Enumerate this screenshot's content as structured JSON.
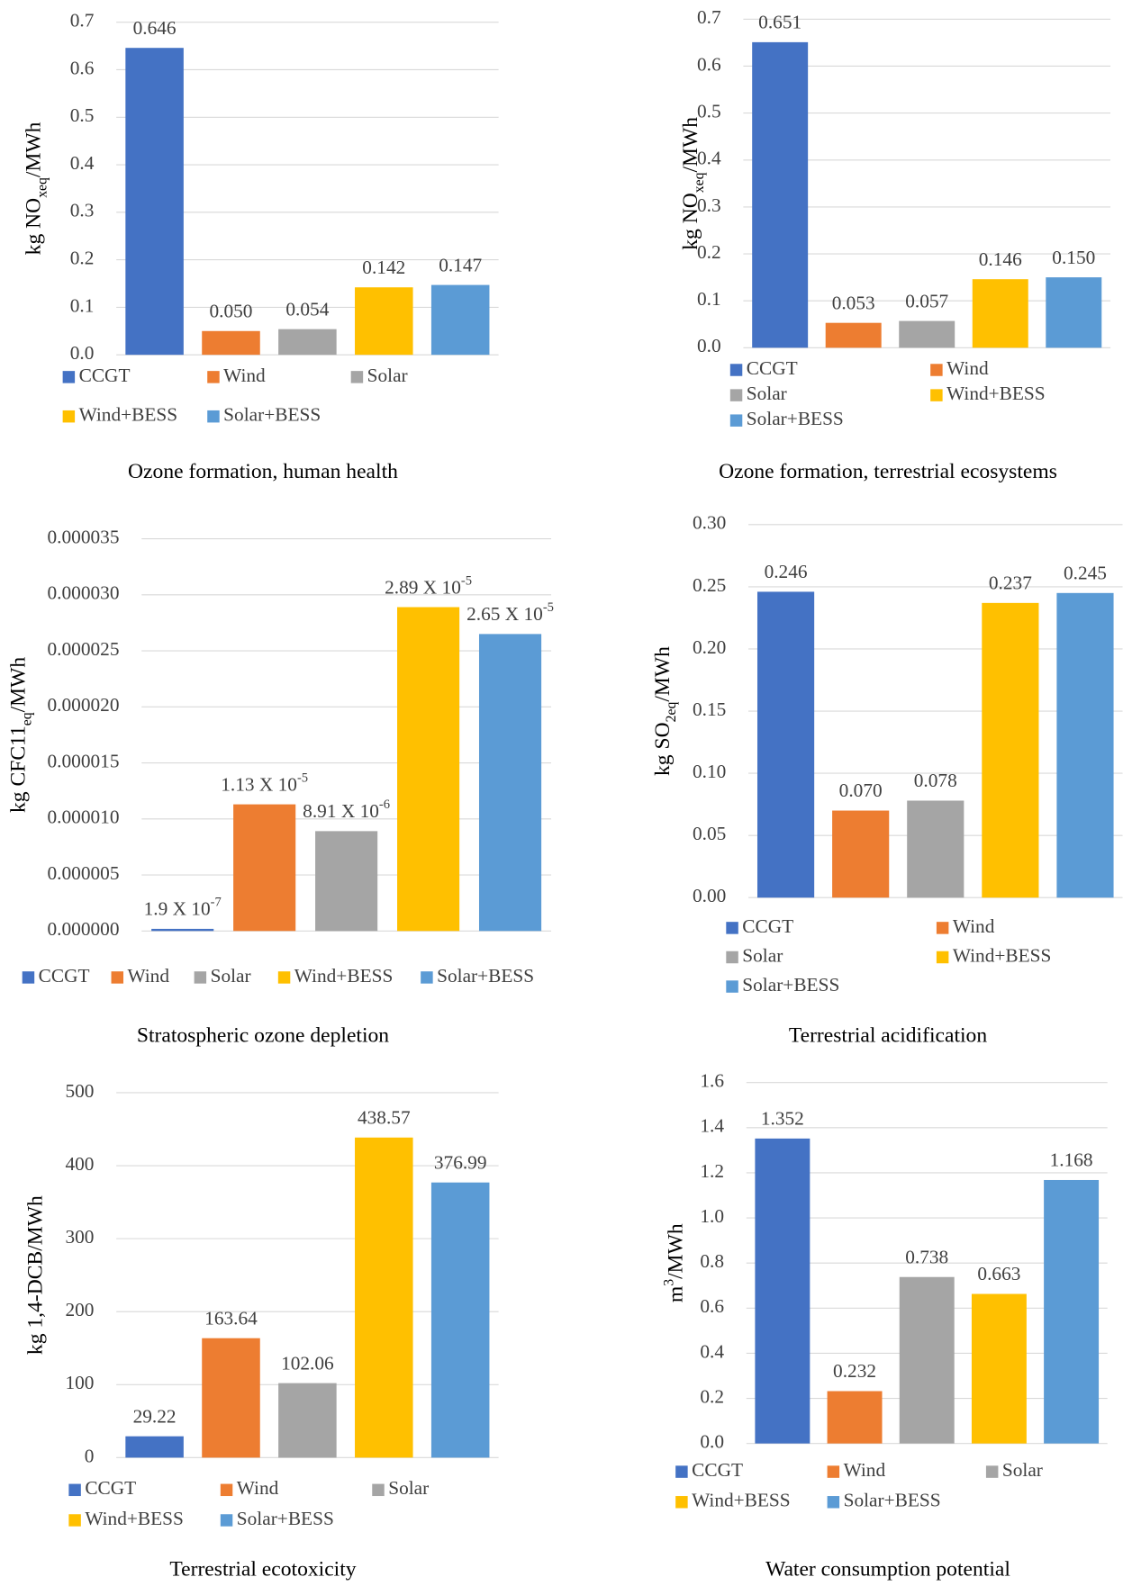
{
  "chart_data": [
    {
      "type": "bar",
      "caption": "Ozone formation, human health",
      "ylabel": [
        {
          "text": "kg NO"
        },
        {
          "text": "xeq",
          "shift": "sub"
        },
        {
          "text": "/MWh"
        }
      ],
      "ylim": [
        0,
        0.7
      ],
      "yticks": [
        {
          "value": 0,
          "label": "0.0"
        },
        0.1,
        0.2,
        0.3,
        0.4,
        0.5,
        0.6,
        0.7
      ],
      "grid": true,
      "legend": "bottom",
      "legend_columns": 3,
      "series": [
        {
          "name": "CCGT",
          "color": "#4472c4",
          "values": [
            0.646
          ],
          "value_labels": [
            "0.646"
          ]
        },
        {
          "name": "Wind",
          "color": "#ed7d31",
          "values": [
            0.05
          ],
          "value_labels": [
            "0.050"
          ]
        },
        {
          "name": "Solar",
          "color": "#a5a5a5",
          "values": [
            0.054
          ],
          "value_labels": [
            "0.054"
          ]
        },
        {
          "name": "Wind+BESS",
          "color": "#ffc000",
          "values": [
            0.142
          ],
          "value_labels": [
            "0.142"
          ]
        },
        {
          "name": "Solar+BESS",
          "color": "#5b9bd5",
          "values": [
            0.147
          ],
          "value_labels": [
            "0.147"
          ]
        }
      ]
    },
    {
      "type": "bar",
      "caption": "Ozone formation, terrestrial ecosystems",
      "ylabel": [
        {
          "text": "kg NO"
        },
        {
          "text": "xeq",
          "shift": "sub"
        },
        {
          "text": "/MWh"
        }
      ],
      "ylim": [
        0,
        0.7
      ],
      "yticks": [
        {
          "value": 0,
          "label": "0.0"
        },
        0.1,
        0.2,
        0.3,
        0.4,
        0.5,
        0.6,
        0.7
      ],
      "grid": true,
      "legend": "bottom",
      "legend_columns": 2,
      "series": [
        {
          "name": "CCGT",
          "color": "#4472c4",
          "values": [
            0.651
          ],
          "value_labels": [
            "0.651"
          ]
        },
        {
          "name": "Wind",
          "color": "#ed7d31",
          "values": [
            0.053
          ],
          "value_labels": [
            "0.053"
          ]
        },
        {
          "name": "Solar",
          "color": "#a5a5a5",
          "values": [
            0.057
          ],
          "value_labels": [
            "0.057"
          ]
        },
        {
          "name": "Wind+BESS",
          "color": "#ffc000",
          "values": [
            0.146
          ],
          "value_labels": [
            "0.146"
          ]
        },
        {
          "name": "Solar+BESS",
          "color": "#5b9bd5",
          "values": [
            0.15
          ],
          "value_labels": [
            "0.150"
          ]
        }
      ]
    },
    {
      "type": "bar",
      "caption": "Stratospheric ozone depletion",
      "ylabel": [
        {
          "text": "kg CFC11"
        },
        {
          "text": "eq",
          "shift": "sub"
        },
        {
          "text": "/MWh"
        }
      ],
      "ylim": [
        0,
        3.5e-05
      ],
      "yticks": [
        {
          "value": 0,
          "label": "0.000000"
        },
        5e-06,
        {
          "value": 1e-05,
          "label": "0.000010"
        },
        1.5e-05,
        {
          "value": 2e-05,
          "label": "0.000020"
        },
        2.5e-05,
        {
          "value": 3e-05,
          "label": "0.000030"
        },
        3.5e-05
      ],
      "grid": true,
      "legend": "bottom",
      "legend_columns": 5,
      "series": [
        {
          "name": "CCGT",
          "color": "#4472c4",
          "values": [
            1.9e-07
          ],
          "value_labels": [
            {
              "base": "1.9 X 10",
              "sup": "-7"
            }
          ]
        },
        {
          "name": "Wind",
          "color": "#ed7d31",
          "values": [
            1.13e-05
          ],
          "value_labels": [
            {
              "base": "1.13 X 10",
              "sup": "-5"
            }
          ]
        },
        {
          "name": "Solar",
          "color": "#a5a5a5",
          "values": [
            8.91e-06
          ],
          "value_labels": [
            {
              "base": "8.91 X 10",
              "sup": "-6"
            }
          ]
        },
        {
          "name": "Wind+BESS",
          "color": "#ffc000",
          "values": [
            2.89e-05
          ],
          "value_labels": [
            {
              "base": "2.89 X 10",
              "sup": "-5"
            }
          ]
        },
        {
          "name": "Solar+BESS",
          "color": "#5b9bd5",
          "values": [
            2.65e-05
          ],
          "value_labels": [
            {
              "base": "2.65 X 10",
              "sup": "-5"
            }
          ]
        }
      ]
    },
    {
      "type": "bar",
      "caption": "Terrestrial acidification",
      "ylabel": [
        {
          "text": "kg SO"
        },
        {
          "text": "2eq",
          "shift": "sub"
        },
        {
          "text": "/MWh"
        }
      ],
      "ylim": [
        0,
        0.3
      ],
      "yticks": [
        {
          "value": 0,
          "label": "0.00"
        },
        0.05,
        {
          "value": 0.1,
          "label": "0.10"
        },
        0.15,
        {
          "value": 0.2,
          "label": "0.20"
        },
        0.25,
        {
          "value": 0.3,
          "label": "0.30"
        }
      ],
      "grid": true,
      "legend": "bottom",
      "legend_columns": 2,
      "series": [
        {
          "name": "CCGT",
          "color": "#4472c4",
          "values": [
            0.246
          ],
          "value_labels": [
            "0.246"
          ]
        },
        {
          "name": "Wind",
          "color": "#ed7d31",
          "values": [
            0.07
          ],
          "value_labels": [
            "0.070"
          ]
        },
        {
          "name": "Solar",
          "color": "#a5a5a5",
          "values": [
            0.078
          ],
          "value_labels": [
            "0.078"
          ]
        },
        {
          "name": "Wind+BESS",
          "color": "#ffc000",
          "values": [
            0.237
          ],
          "value_labels": [
            "0.237"
          ]
        },
        {
          "name": "Solar+BESS",
          "color": "#5b9bd5",
          "values": [
            0.245
          ],
          "value_labels": [
            "0.245"
          ]
        }
      ]
    },
    {
      "type": "bar",
      "caption": "Terrestrial ecotoxicity",
      "ylabel": [
        {
          "text": "kg 1,4-DCB/MWh"
        }
      ],
      "ylim": [
        0,
        500
      ],
      "yticks": [
        0,
        100,
        200,
        300,
        400,
        500
      ],
      "grid": true,
      "legend": "bottom",
      "legend_columns": 3,
      "series": [
        {
          "name": "CCGT",
          "color": "#4472c4",
          "values": [
            29.22
          ],
          "value_labels": [
            "29.22"
          ]
        },
        {
          "name": "Wind",
          "color": "#ed7d31",
          "values": [
            163.64
          ],
          "value_labels": [
            "163.64"
          ]
        },
        {
          "name": "Solar",
          "color": "#a5a5a5",
          "values": [
            102.06
          ],
          "value_labels": [
            "102.06"
          ]
        },
        {
          "name": "Wind+BESS",
          "color": "#ffc000",
          "values": [
            438.57
          ],
          "value_labels": [
            "438.57"
          ]
        },
        {
          "name": "Solar+BESS",
          "color": "#5b9bd5",
          "values": [
            376.99
          ],
          "value_labels": [
            "376.99"
          ]
        }
      ]
    },
    {
      "type": "bar",
      "caption": "Water consumption potential",
      "ylabel": [
        {
          "text": "m"
        },
        {
          "text": "3",
          "shift": "super"
        },
        {
          "text": "/MWh"
        }
      ],
      "ylim": [
        0,
        1.6
      ],
      "yticks": [
        {
          "value": 0,
          "label": "0.0"
        },
        0.2,
        0.4,
        0.6,
        0.8,
        {
          "value": 1,
          "label": "1.0"
        },
        1.2,
        1.4,
        1.6
      ],
      "grid": true,
      "legend": "bottom",
      "legend_columns": 3,
      "series": [
        {
          "name": "CCGT",
          "color": "#4472c4",
          "values": [
            1.352
          ],
          "value_labels": [
            "1.352"
          ]
        },
        {
          "name": "Wind",
          "color": "#ed7d31",
          "values": [
            0.232
          ],
          "value_labels": [
            "0.232"
          ]
        },
        {
          "name": "Solar",
          "color": "#a5a5a5",
          "values": [
            0.738
          ],
          "value_labels": [
            "0.738"
          ]
        },
        {
          "name": "Wind+BESS",
          "color": "#ffc000",
          "values": [
            0.663
          ],
          "value_labels": [
            "0.663"
          ]
        },
        {
          "name": "Solar+BESS",
          "color": "#5b9bd5",
          "values": [
            1.168
          ],
          "value_labels": [
            "1.168"
          ]
        }
      ]
    }
  ]
}
